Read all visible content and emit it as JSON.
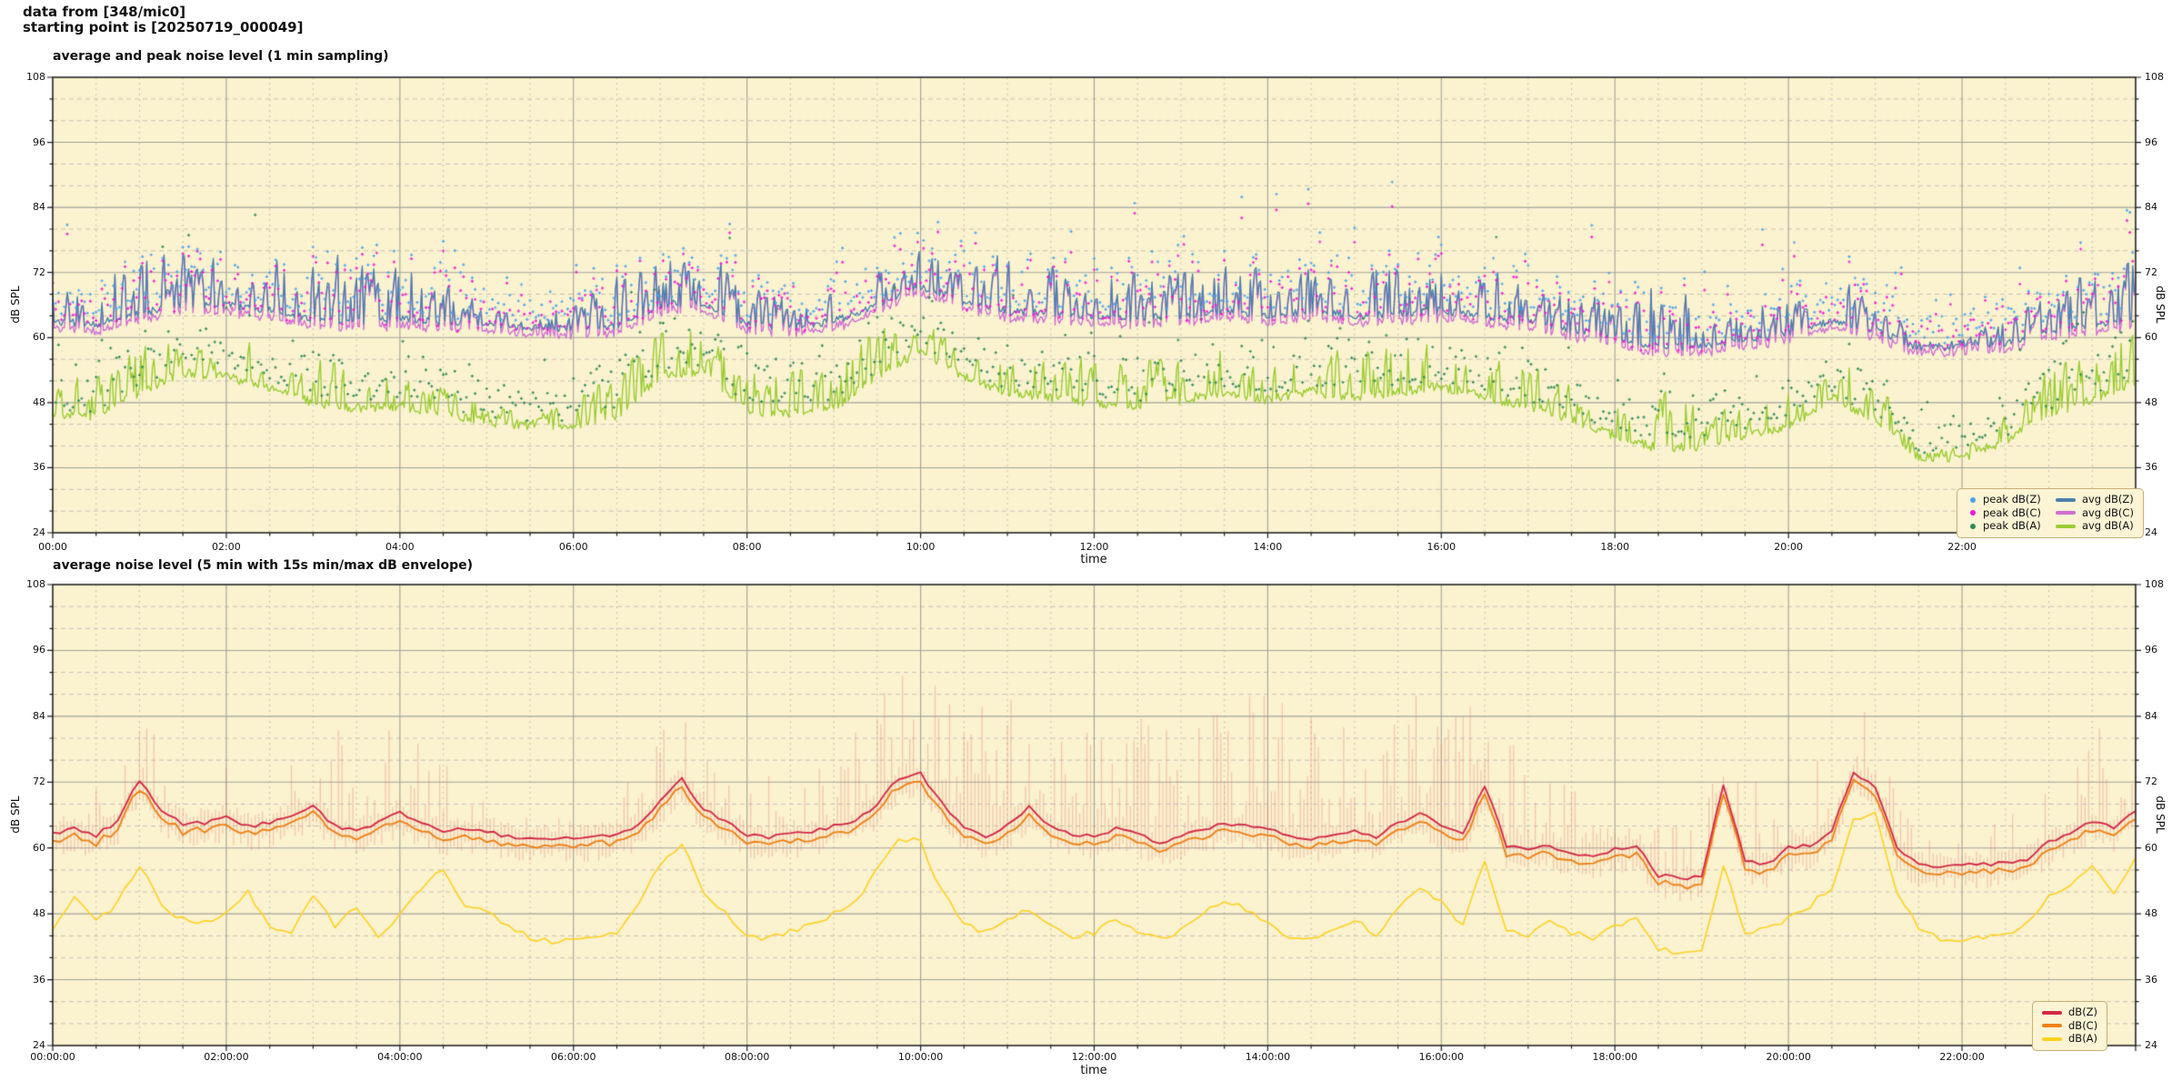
{
  "header": {
    "line1": "data from [348/mic0]",
    "line2": "starting point is [20250719_000049]"
  },
  "colors": {
    "figure_bg": "#ffffff",
    "axes_bg": "#fbf2cf",
    "grid_major": "#a2a29b",
    "grid_minor": "#c6c3b2",
    "spine": "#1a1a1a",
    "legend_bg": "#fcf4d4",
    "legend_border": "#c9ae77",
    "avg_dbz": "#4d80ad",
    "avg_dbc": "#d06fd3",
    "avg_dba": "#9acd32",
    "peak_dbz": "#4aa2ee",
    "peak_dbc": "#f318d8",
    "peak_dba": "#2e8b57",
    "bottom_dbz": "#d42a47",
    "bottom_dbc": "#f08218",
    "bottom_dba": "#ffd220",
    "envelope": "rgba(232,130,118,0.38)"
  },
  "chart_data": [
    {
      "type": "line+scatter",
      "title": "average and peak noise level (1 min sampling)",
      "xlabel": "time",
      "ylabel_left": "dB SPL",
      "ylabel_right": "dB SPL",
      "ylim": [
        24,
        108
      ],
      "yticks": [
        24,
        36,
        48,
        60,
        72,
        84,
        96,
        108
      ],
      "y_minor_step": 4,
      "xlim_hours": [
        0,
        24
      ],
      "xtick_hours": [
        0,
        2,
        4,
        6,
        8,
        10,
        12,
        14,
        16,
        18,
        20,
        22
      ],
      "xtick_labels": [
        "00:00",
        "02:00",
        "04:00",
        "06:00",
        "08:00",
        "10:00",
        "12:00",
        "14:00",
        "16:00",
        "18:00",
        "20:00",
        "22:00"
      ],
      "x_minor_step_hours": 0.5,
      "grid": "major solid + minor dashed, on",
      "legend_position": "lower right",
      "sampling_minutes": 1,
      "legend": {
        "scatter_items": [
          {
            "label": "peak dB(Z)",
            "color": "#4aa2ee"
          },
          {
            "label": "peak dB(C)",
            "color": "#f318d8"
          },
          {
            "label": "peak dB(A)",
            "color": "#2e8b57"
          }
        ],
        "line_items": [
          {
            "label": "avg dB(Z)",
            "color": "#4d80ad"
          },
          {
            "label": "avg dB(C)",
            "color": "#d06fd3"
          },
          {
            "label": "avg dB(A)",
            "color": "#9acd32"
          }
        ]
      },
      "model": {
        "seed": 1337,
        "avg_z": {
          "color": "#4d80ad",
          "start_hour": 0,
          "step_hours": 0.5,
          "jitter": 1.4,
          "spike_prob": 0.22,
          "values": [
            63.0,
            62.5,
            64.5,
            66.0,
            66.0,
            65.0,
            63.5,
            63.0,
            63.5,
            63.0,
            62.5,
            61.8,
            61.8,
            62.0,
            66.0,
            66.5,
            62.5,
            62.0,
            63.0,
            66.0,
            69.5,
            66.5,
            65.0,
            64.5,
            64.0,
            63.5,
            64.0,
            65.0,
            64.0,
            65.0,
            64.0,
            64.5,
            65.0,
            64.0,
            63.0,
            61.5,
            60.5,
            58.0,
            58.5,
            59.5,
            61.0,
            63.0,
            61.5,
            58.0,
            58.3,
            59.0,
            61.0,
            62.0,
            63.5
          ]
        },
        "spike_z": {
          "step_hours": 0.5,
          "values": [
            7,
            9,
            11,
            10,
            10,
            11,
            12,
            12,
            11,
            9,
            4,
            1,
            5,
            10,
            11,
            10,
            7,
            6,
            6,
            6,
            7,
            11,
            10,
            9,
            9,
            9,
            9,
            9,
            9,
            9,
            9,
            9,
            9,
            9,
            8,
            7,
            8,
            14,
            8,
            6,
            7,
            9,
            7,
            1.5,
            1.5,
            5,
            8,
            11,
            12
          ]
        },
        "avg_c": {
          "color": "#d06fd3",
          "offset_range": [
            0.9,
            1.6
          ],
          "spike_offset_range": [
            0.3,
            0.7
          ]
        },
        "avg_a": {
          "color": "#9acd32",
          "start_hour": 0,
          "step_hours": 0.5,
          "jitter": 1.8,
          "spike_prob": 0.2,
          "values": [
            46.0,
            45.5,
            50.0,
            53.5,
            53.0,
            50.5,
            48.0,
            47.0,
            47.5,
            46.0,
            44.5,
            43.5,
            44.0,
            45.0,
            53.0,
            54.0,
            46.5,
            46.0,
            47.0,
            53.0,
            57.5,
            53.0,
            50.0,
            49.0,
            48.0,
            47.5,
            48.5,
            50.0,
            48.5,
            50.0,
            49.0,
            50.0,
            51.0,
            49.0,
            47.5,
            45.0,
            42.0,
            39.5,
            40.0,
            42.0,
            43.5,
            49.0,
            45.0,
            38.0,
            37.8,
            41.0,
            46.0,
            48.5,
            52.0
          ]
        },
        "spike_a": {
          "step_hours": 0.5,
          "values": [
            7,
            8,
            9,
            8,
            7,
            8,
            9,
            8,
            7,
            6,
            3,
            2,
            5,
            9,
            10,
            9,
            9,
            9,
            9,
            9,
            8,
            9,
            10,
            9,
            9,
            9,
            9,
            9,
            9,
            9,
            9,
            9,
            8,
            9,
            8,
            7,
            8,
            14,
            7,
            5,
            7,
            10,
            8,
            2,
            2,
            6,
            9,
            10,
            10
          ]
        },
        "peak_z": {
          "color": "#4aa2ee",
          "every_minutes": 2,
          "base_offset": 1.2,
          "tail_scale": 2.6,
          "outlier_prob": 0.011,
          "outlier_range": [
            82,
            94
          ]
        },
        "peak_c": {
          "color": "#f318d8"
        },
        "peak_a": {
          "color": "#2e8b57",
          "base_offset": 1.4,
          "tail_scale": 2.2,
          "outlier_prob": 0.006,
          "outlier_range": [
            72,
            86
          ]
        }
      }
    },
    {
      "type": "line+envelope",
      "title": "average noise level (5 min with 15s min/max dB envelope)",
      "xlabel": "time",
      "ylabel_left": "dB SPL",
      "ylabel_right": "dB SPL",
      "ylim": [
        24,
        108
      ],
      "yticks": [
        24,
        36,
        48,
        60,
        72,
        84,
        96,
        108
      ],
      "y_minor_step": 4,
      "xlim_hours": [
        0,
        24
      ],
      "xtick_hours": [
        0,
        2,
        4,
        6,
        8,
        10,
        12,
        14,
        16,
        18,
        20,
        22
      ],
      "xtick_labels": [
        "00:00:00",
        "02:00:00",
        "04:00:00",
        "06:00:00",
        "08:00:00",
        "10:00:00",
        "12:00:00",
        "14:00:00",
        "16:00:00",
        "18:00:00",
        "20:00:00",
        "22:00:00"
      ],
      "x_minor_step_hours": 0.5,
      "grid": "major solid + minor dashed, on",
      "legend_position": "lower right",
      "sampling_minutes": 5,
      "envelope_seconds": 15,
      "legend": {
        "line_items": [
          {
            "label": "dB(Z)",
            "color": "#d42a47"
          },
          {
            "label": "dB(C)",
            "color": "#f08218"
          },
          {
            "label": "dB(A)",
            "color": "#ffd220"
          }
        ]
      },
      "model": {
        "seed": 7331,
        "avg_z": {
          "color": "#d42a47",
          "start_hour": 0,
          "step_hours": 0.25,
          "jitter": 0.7,
          "values": [
            62.5,
            63.5,
            62.3,
            65.0,
            72.5,
            67.0,
            64.5,
            64.5,
            65.5,
            64.0,
            64.5,
            66.0,
            67.5,
            64.0,
            63.0,
            64.5,
            66.5,
            64.5,
            63.0,
            63.5,
            63.0,
            62.0,
            61.8,
            61.8,
            61.9,
            62.0,
            62.2,
            64.0,
            68.5,
            72.5,
            67.0,
            65.0,
            62.5,
            62.0,
            62.5,
            63.0,
            64.0,
            65.0,
            68.0,
            72.8,
            73.5,
            68.0,
            63.5,
            62.0,
            64.0,
            67.5,
            64.0,
            62.5,
            62.0,
            63.5,
            62.5,
            61.0,
            62.0,
            63.5,
            64.5,
            64.0,
            63.5,
            62.0,
            61.5,
            62.5,
            63.0,
            62.0,
            64.5,
            66.5,
            64.0,
            62.5,
            71.5,
            60.5,
            59.5,
            60.5,
            59.0,
            58.5,
            59.8,
            60.5,
            55.0,
            54.5,
            54.8,
            71.5,
            57.5,
            57.0,
            60.0,
            60.5,
            63.0,
            74.0,
            71.0,
            60.0,
            57.0,
            56.5,
            56.8,
            57.0,
            57.2,
            58.0,
            61.0,
            62.5,
            65.0,
            63.5,
            67.0
          ]
        },
        "avg_c": {
          "color": "#f08218",
          "offset_range": [
            1.0,
            1.8
          ]
        },
        "avg_a": {
          "color": "#ffd220",
          "start_hour": 0,
          "step_hours": 0.25,
          "jitter": 1.1,
          "values": [
            45.5,
            51.0,
            46.5,
            50.0,
            57.0,
            49.5,
            47.0,
            46.5,
            48.0,
            52.0,
            46.0,
            44.5,
            51.0,
            46.0,
            49.5,
            44.0,
            48.0,
            53.0,
            56.0,
            49.0,
            48.5,
            46.0,
            43.5,
            43.0,
            43.5,
            44.0,
            44.5,
            50.0,
            57.0,
            61.0,
            52.0,
            48.0,
            44.0,
            43.5,
            45.0,
            46.0,
            48.0,
            50.0,
            56.0,
            62.0,
            61.0,
            52.0,
            46.0,
            44.5,
            47.0,
            49.0,
            45.5,
            44.0,
            44.5,
            47.0,
            45.0,
            43.5,
            45.0,
            48.0,
            50.5,
            49.0,
            46.0,
            44.0,
            43.5,
            45.0,
            47.0,
            44.0,
            49.0,
            53.0,
            50.0,
            46.0,
            58.0,
            45.0,
            44.0,
            47.0,
            44.5,
            43.5,
            46.0,
            47.0,
            41.5,
            41.0,
            41.2,
            57.0,
            44.0,
            45.5,
            47.0,
            49.5,
            53.0,
            65.0,
            66.0,
            52.0,
            45.5,
            43.5,
            43.5,
            43.8,
            44.0,
            46.0,
            51.0,
            53.5,
            57.0,
            52.0,
            58.0
          ]
        },
        "envelope": {
          "color": "rgba(232,130,118,0.38)",
          "column_minutes": 2.5,
          "step_hours": 0.5,
          "amp": [
            10,
            10,
            12,
            12,
            12,
            16,
            22,
            24,
            20,
            14,
            5,
            3,
            6,
            14,
            18,
            16,
            12,
            14,
            16,
            20,
            18,
            24,
            22,
            20,
            20,
            22,
            20,
            22,
            26,
            22,
            20,
            22,
            24,
            20,
            18,
            14,
            12,
            8,
            10,
            14,
            16,
            14,
            12,
            5,
            5,
            8,
            16,
            20,
            18
          ],
          "density": [
            0.3,
            0.3,
            0.35,
            0.3,
            0.35,
            0.45,
            0.5,
            0.5,
            0.45,
            0.35,
            0.2,
            0.15,
            0.2,
            0.5,
            0.55,
            0.5,
            0.35,
            0.4,
            0.45,
            0.5,
            0.5,
            0.65,
            0.7,
            0.65,
            0.6,
            0.7,
            0.65,
            0.7,
            0.75,
            0.7,
            0.65,
            0.7,
            0.75,
            0.7,
            0.65,
            0.55,
            0.45,
            0.3,
            0.35,
            0.45,
            0.5,
            0.45,
            0.4,
            0.5,
            0.5,
            0.45,
            0.55,
            0.6,
            0.55
          ]
        }
      }
    }
  ]
}
